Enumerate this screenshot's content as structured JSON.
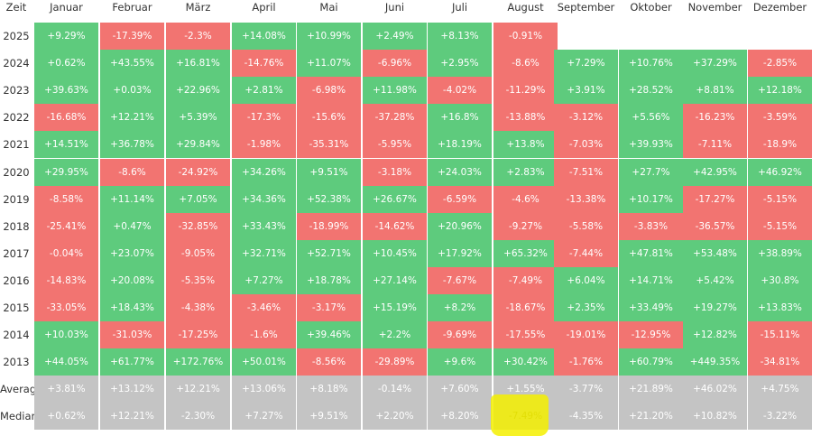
{
  "header": {
    "corner": "Zeit",
    "months": [
      "Januar",
      "Februar",
      "März",
      "April",
      "Mai",
      "Juni",
      "Juli",
      "August",
      "September",
      "Oktober",
      "November",
      "Dezember"
    ]
  },
  "rows": [
    {
      "label": "2025",
      "values": [
        "+9.29%",
        "-17.39%",
        "-2.3%",
        "+14.08%",
        "+10.99%",
        "+2.49%",
        "+8.13%",
        "-0.91%",
        "",
        "",
        "",
        ""
      ]
    },
    {
      "label": "2024",
      "values": [
        "+0.62%",
        "+43.55%",
        "+16.81%",
        "-14.76%",
        "+11.07%",
        "-6.96%",
        "+2.95%",
        "-8.6%",
        "+7.29%",
        "+10.76%",
        "+37.29%",
        "-2.85%"
      ]
    },
    {
      "label": "2023",
      "values": [
        "+39.63%",
        "+0.03%",
        "+22.96%",
        "+2.81%",
        "-6.98%",
        "+11.98%",
        "-4.02%",
        "-11.29%",
        "+3.91%",
        "+28.52%",
        "+8.81%",
        "+12.18%"
      ]
    },
    {
      "label": "2022",
      "values": [
        "-16.68%",
        "+12.21%",
        "+5.39%",
        "-17.3%",
        "-15.6%",
        "-37.28%",
        "+16.8%",
        "-13.88%",
        "-3.12%",
        "+5.56%",
        "-16.23%",
        "-3.59%"
      ]
    },
    {
      "label": "2021",
      "values": [
        "+14.51%",
        "+36.78%",
        "+29.84%",
        "-1.98%",
        "-35.31%",
        "-5.95%",
        "+18.19%",
        "+13.8%",
        "-7.03%",
        "+39.93%",
        "-7.11%",
        "-18.9%"
      ]
    },
    {
      "label": "2020",
      "values": [
        "+29.95%",
        "-8.6%",
        "-24.92%",
        "+34.26%",
        "+9.51%",
        "-3.18%",
        "+24.03%",
        "+2.83%",
        "-7.51%",
        "+27.7%",
        "+42.95%",
        "+46.92%"
      ]
    },
    {
      "label": "2019",
      "values": [
        "-8.58%",
        "+11.14%",
        "+7.05%",
        "+34.36%",
        "+52.38%",
        "+26.67%",
        "-6.59%",
        "-4.6%",
        "-13.38%",
        "+10.17%",
        "-17.27%",
        "-5.15%"
      ]
    },
    {
      "label": "2018",
      "values": [
        "-25.41%",
        "+0.47%",
        "-32.85%",
        "+33.43%",
        "-18.99%",
        "-14.62%",
        "+20.96%",
        "-9.27%",
        "-5.58%",
        "-3.83%",
        "-36.57%",
        "-5.15%"
      ]
    },
    {
      "label": "2017",
      "values": [
        "-0.04%",
        "+23.07%",
        "-9.05%",
        "+32.71%",
        "+52.71%",
        "+10.45%",
        "+17.92%",
        "+65.32%",
        "-7.44%",
        "+47.81%",
        "+53.48%",
        "+38.89%"
      ]
    },
    {
      "label": "2016",
      "values": [
        "-14.83%",
        "+20.08%",
        "-5.35%",
        "+7.27%",
        "+18.78%",
        "+27.14%",
        "-7.67%",
        "-7.49%",
        "+6.04%",
        "+14.71%",
        "+5.42%",
        "+30.8%"
      ]
    },
    {
      "label": "2015",
      "values": [
        "-33.05%",
        "+18.43%",
        "-4.38%",
        "-3.46%",
        "-3.17%",
        "+15.19%",
        "+8.2%",
        "-18.67%",
        "+2.35%",
        "+33.49%",
        "+19.27%",
        "+13.83%"
      ]
    },
    {
      "label": "2014",
      "values": [
        "+10.03%",
        "-31.03%",
        "-17.25%",
        "-1.6%",
        "+39.46%",
        "+2.2%",
        "-9.69%",
        "-17.55%",
        "-19.01%",
        "-12.95%",
        "+12.82%",
        "-15.11%"
      ]
    },
    {
      "label": "2013",
      "values": [
        "+44.05%",
        "+61.77%",
        "+172.76%",
        "+50.01%",
        "-8.56%",
        "-29.89%",
        "+9.6%",
        "+30.42%",
        "-1.76%",
        "+60.79%",
        "+449.35%",
        "-34.81%"
      ]
    }
  ],
  "summary": [
    {
      "label": "Average",
      "values": [
        "+3.81%",
        "+13.12%",
        "+12.21%",
        "+13.06%",
        "+8.18%",
        "-0.14%",
        "+7.60%",
        "+1.55%",
        "-3.77%",
        "+21.89%",
        "+46.02%",
        "+4.75%"
      ]
    },
    {
      "label": "Median",
      "values": [
        "+0.62%",
        "+12.21%",
        "-2.30%",
        "+7.27%",
        "+9.51%",
        "+2.20%",
        "+8.20%",
        "-7.49%",
        "-4.35%",
        "+21.20%",
        "+10.82%",
        "-3.22%"
      ]
    }
  ],
  "highlight": {
    "row_label": "Median",
    "month": "August",
    "color": "#f4f000"
  },
  "colors": {
    "positive": "#5ecb7d",
    "negative": "#f27471",
    "summary": "#c4c4c4",
    "text": "#ffffff"
  }
}
